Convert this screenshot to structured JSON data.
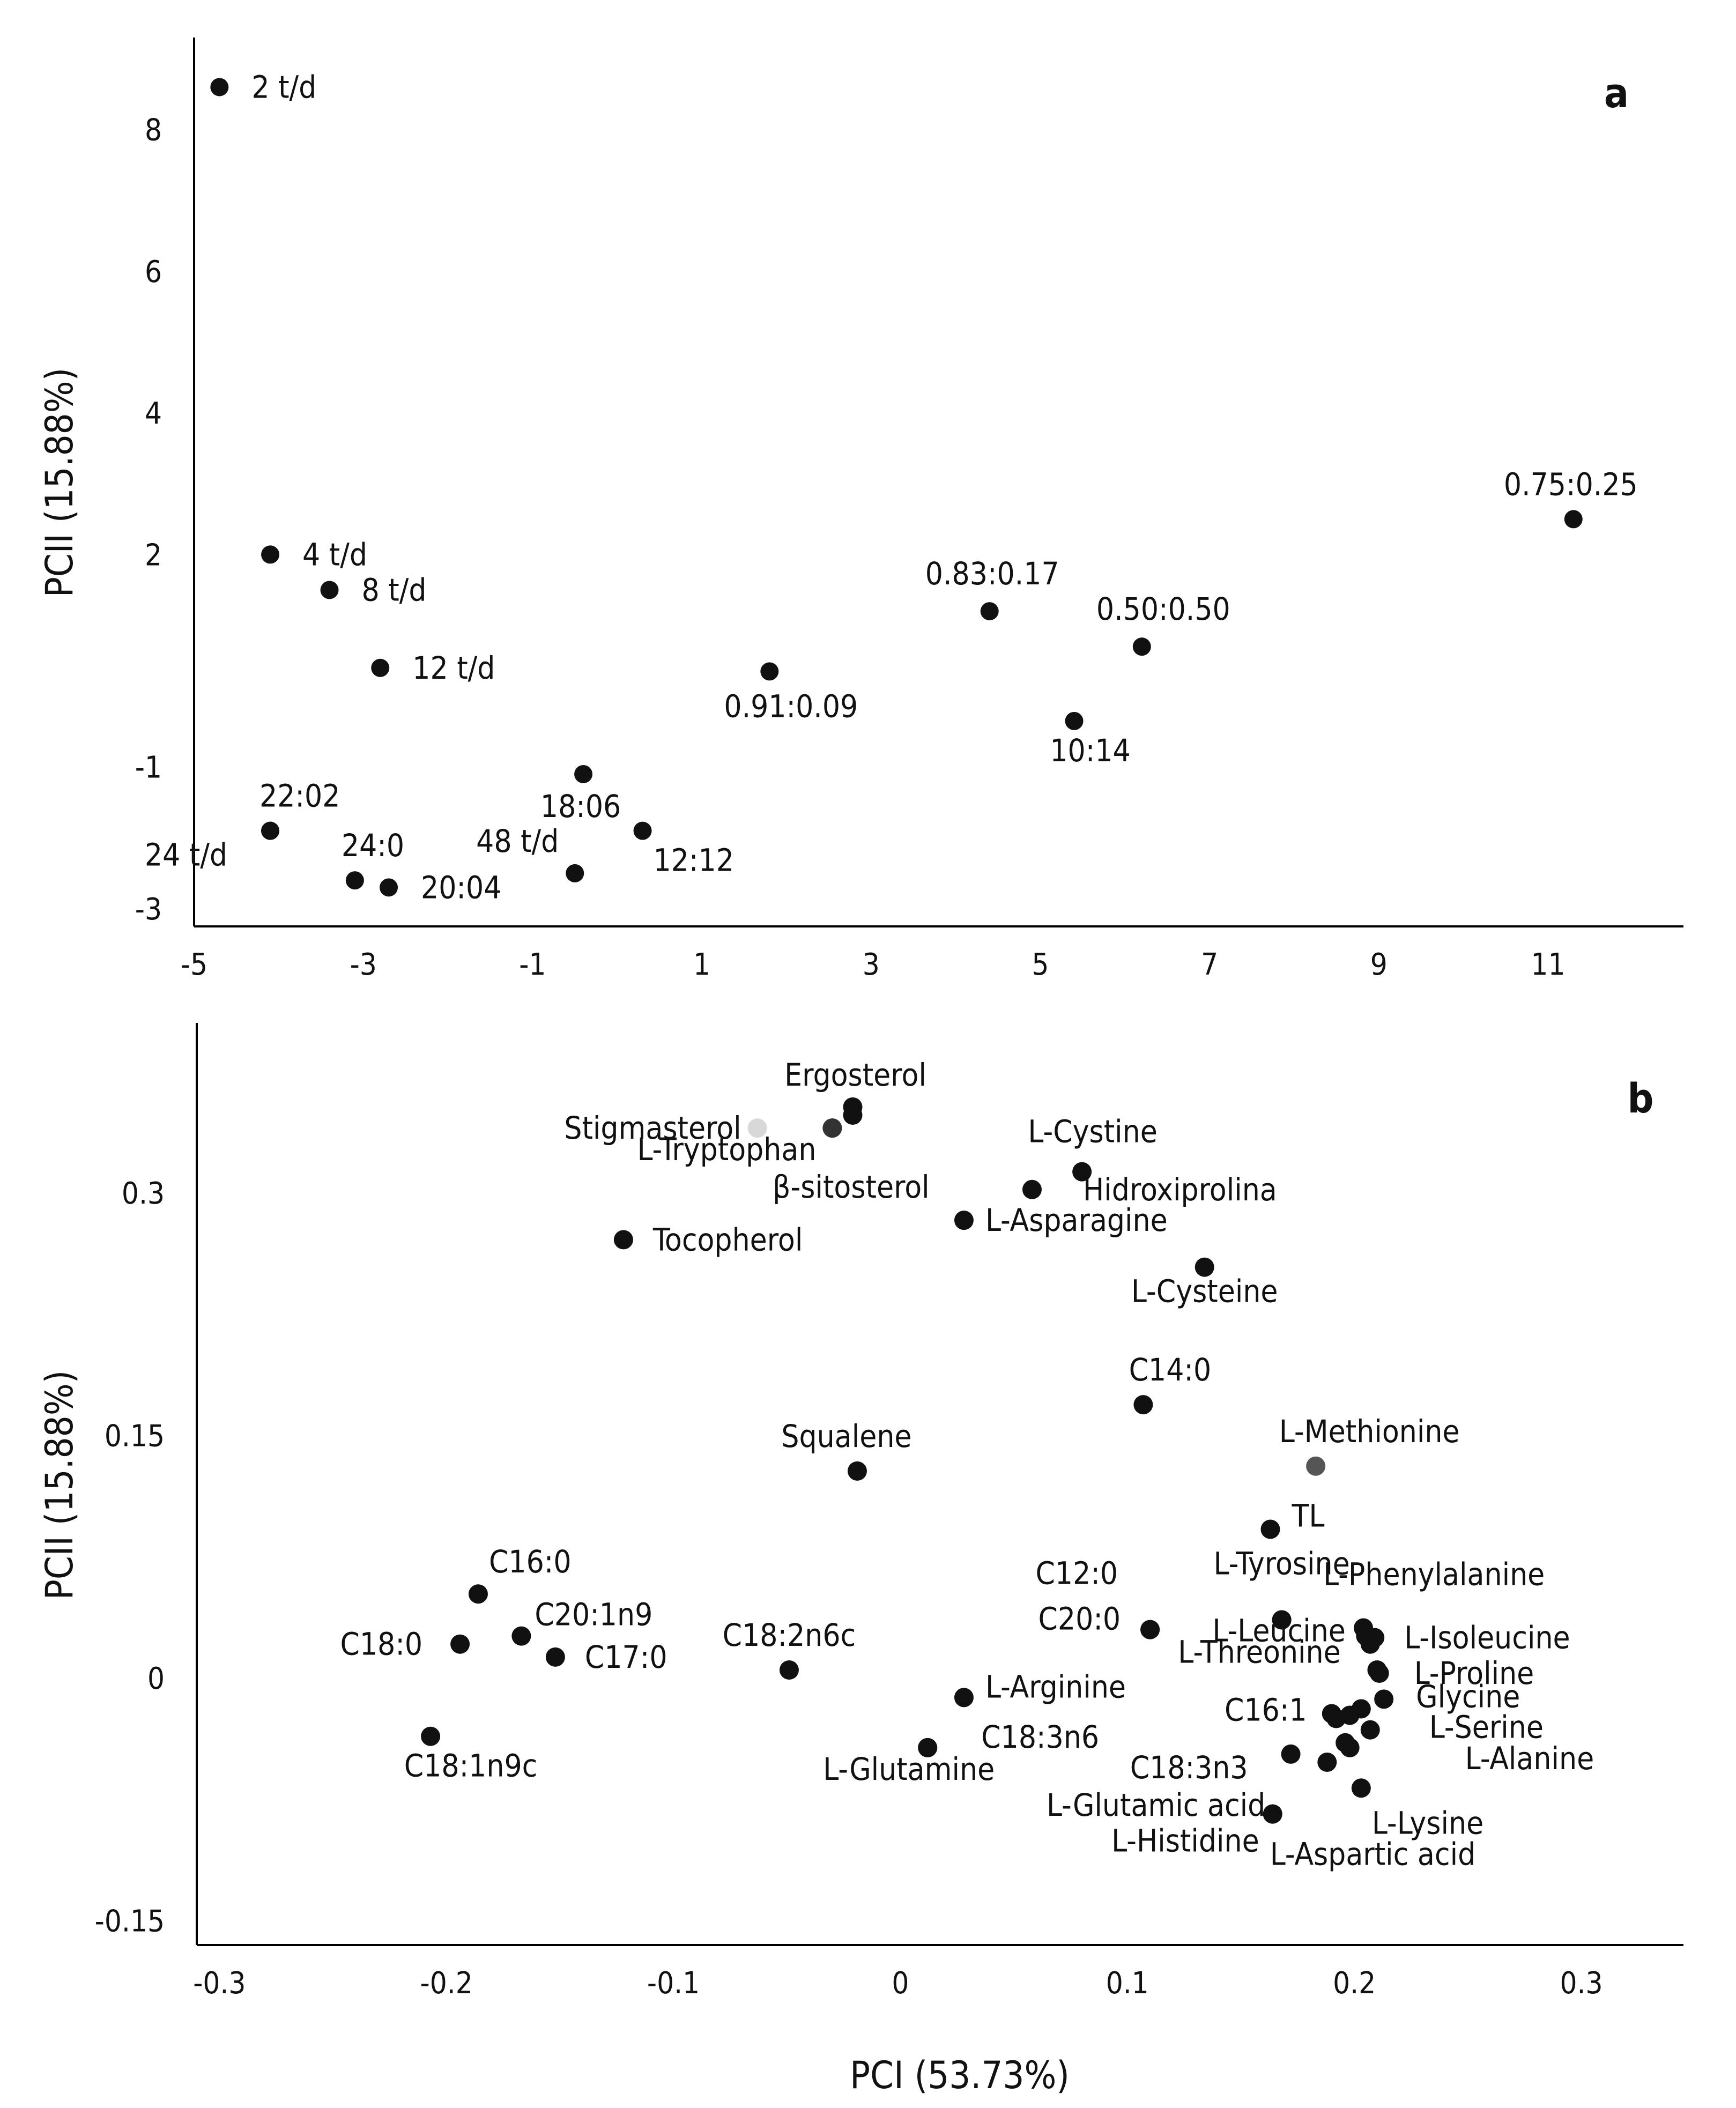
{
  "chart_data": [
    {
      "type": "scatter",
      "panel": "a",
      "ylabel": "PCII (15.88%)",
      "xlabel": "",
      "grid": false,
      "xlim": [
        -5,
        12.6
      ],
      "ylim": [
        -3.25,
        9.3
      ],
      "x_ticks": [
        -5,
        -3,
        -1,
        1,
        3,
        5,
        7,
        9,
        11
      ],
      "x_tick_labels": [
        "-5",
        "-3",
        "-1",
        "1",
        "3",
        "5",
        "7",
        "9",
        "11"
      ],
      "y_ticks": [
        -3,
        -1,
        2,
        4,
        6,
        8
      ],
      "y_tick_labels": [
        "-3",
        "-1",
        "2",
        "4",
        "6",
        "8"
      ],
      "points": [
        {
          "label": "2 t/d",
          "x": -4.7,
          "y": 8.6
        },
        {
          "label": "4 t/d",
          "x": -4.1,
          "y": 2.0
        },
        {
          "label": "8 t/d",
          "x": -3.4,
          "y": 1.5
        },
        {
          "label": "12 t/d",
          "x": -2.8,
          "y": 0.4
        },
        {
          "label": "22:02",
          "x": -4.1,
          "y": -1.9
        },
        {
          "label": "24:0",
          "x": -3.1,
          "y": -2.6
        },
        {
          "label": "24 t/d",
          "x": -4.1,
          "y": -1.9
        },
        {
          "label": "20:04",
          "x": -2.7,
          "y": -2.7
        },
        {
          "label": "18:06",
          "x": -0.4,
          "y": -1.1
        },
        {
          "label": "48 t/d",
          "x": -0.5,
          "y": -2.5
        },
        {
          "label": "12:12",
          "x": 0.3,
          "y": -1.9
        },
        {
          "label": "0.91:0.09",
          "x": 1.8,
          "y": 0.35
        },
        {
          "label": "0.83:0.17",
          "x": 4.4,
          "y": 1.2
        },
        {
          "label": "0.50:0.50",
          "x": 6.2,
          "y": 0.7
        },
        {
          "label": "10:14",
          "x": 5.4,
          "y": -0.35
        },
        {
          "label": "0.75:0.25",
          "x": 11.3,
          "y": 2.5
        }
      ]
    },
    {
      "type": "scatter",
      "panel": "b",
      "ylabel": "PCII (15.88%)",
      "xlabel": "PCI (53.73%)",
      "grid": false,
      "xlim": [
        -0.31,
        0.345
      ],
      "ylim": [
        -0.165,
        0.405
      ],
      "x_ticks": [
        -0.3,
        -0.2,
        -0.1,
        0,
        0.1,
        0.2,
        0.3
      ],
      "x_tick_labels": [
        "-0.3",
        "-0.2",
        "-0.1",
        "0",
        "0.1",
        "0.2",
        "0.3"
      ],
      "y_ticks": [
        -0.15,
        0,
        0.15,
        0.3
      ],
      "y_tick_labels": [
        "-0.15",
        "0",
        "0.15",
        "0.3"
      ],
      "points": [
        {
          "label": "Ergosterol",
          "x": -0.021,
          "y": 0.353,
          "color": "#111111"
        },
        {
          "label": "Stigmasterol",
          "x": -0.063,
          "y": 0.34,
          "color": "#d8d8d8"
        },
        {
          "label": "",
          "x": -0.021,
          "y": 0.348,
          "color": "#111111"
        },
        {
          "label": "L-Tryptophan",
          "x": -0.03,
          "y": 0.34,
          "color": "#333333"
        },
        {
          "label": "β-sitosterol",
          "x": -0.03,
          "y": 0.34,
          "color": "#333333"
        },
        {
          "label": "L-Cystine",
          "x": 0.08,
          "y": 0.313,
          "color": "#111111"
        },
        {
          "label": "Hidroxiprolina",
          "x": 0.058,
          "y": 0.302,
          "color": "#111111"
        },
        {
          "label": "L-Asparagine",
          "x": 0.028,
          "y": 0.283,
          "color": "#111111"
        },
        {
          "label": "Tocopherol",
          "x": -0.122,
          "y": 0.271,
          "color": "#111111"
        },
        {
          "label": "L-Cysteine",
          "x": 0.134,
          "y": 0.254,
          "color": "#111111"
        },
        {
          "label": "C14:0",
          "x": 0.107,
          "y": 0.169,
          "color": "#111111"
        },
        {
          "label": "L-Methionine",
          "x": 0.183,
          "y": 0.131,
          "color": "#555555"
        },
        {
          "label": "Squalene",
          "x": -0.019,
          "y": 0.128,
          "color": "#111111"
        },
        {
          "label": "TL",
          "x": 0.163,
          "y": 0.092,
          "color": "#111111"
        },
        {
          "label": "C16:0",
          "x": -0.186,
          "y": 0.052,
          "color": "#111111"
        },
        {
          "label": "C20:1n9",
          "x": -0.167,
          "y": 0.026,
          "color": "#111111"
        },
        {
          "label": "C18:0",
          "x": -0.194,
          "y": 0.021,
          "color": "#111111"
        },
        {
          "label": "C17:0",
          "x": -0.152,
          "y": 0.013,
          "color": "#111111"
        },
        {
          "label": "C18:2n6c",
          "x": -0.049,
          "y": 0.005,
          "color": "#111111"
        },
        {
          "label": "C18:1n9c",
          "x": -0.207,
          "y": -0.036,
          "color": "#111111"
        },
        {
          "label": "C12:0",
          "x": 0.11,
          "y": 0.03,
          "color": "#111111"
        },
        {
          "label": "C20:0",
          "x": 0.11,
          "y": 0.03,
          "color": "#111111"
        },
        {
          "label": "L-Tyrosine",
          "x": 0.168,
          "y": 0.036,
          "color": "#111111"
        },
        {
          "label": "L-Phenylalanine",
          "x": 0.204,
          "y": 0.031,
          "color": "#111111"
        },
        {
          "label": "L-Leucine",
          "x": 0.168,
          "y": 0.036,
          "color": "#111111"
        },
        {
          "label": "L-Isoleucine",
          "x": 0.209,
          "y": 0.025,
          "color": "#111111"
        },
        {
          "label": "L-Threonine",
          "x": 0.207,
          "y": 0.021,
          "color": "#111111"
        },
        {
          "label": "L-Proline",
          "x": 0.211,
          "y": 0.003,
          "color": "#111111"
        },
        {
          "label": "L-Arginine",
          "x": 0.028,
          "y": -0.012,
          "color": "#111111"
        },
        {
          "label": "C16:1",
          "x": 0.198,
          "y": -0.023,
          "color": "#111111"
        },
        {
          "label": "Glycine",
          "x": 0.213,
          "y": -0.013,
          "color": "#111111"
        },
        {
          "label": "C18:3n6",
          "x": 0.012,
          "y": -0.043,
          "color": "#111111"
        },
        {
          "label": "L-Serine",
          "x": 0.207,
          "y": -0.032,
          "color": "#111111"
        },
        {
          "label": "C18:3n3",
          "x": 0.172,
          "y": -0.047,
          "color": "#111111"
        },
        {
          "label": "L-Glutamine",
          "x": 0.012,
          "y": -0.043,
          "color": "#111111"
        },
        {
          "label": "L-Alanine",
          "x": 0.198,
          "y": -0.043,
          "color": "#111111"
        },
        {
          "label": "L-Glutamic acid",
          "x": 0.188,
          "y": -0.052,
          "color": "#111111"
        },
        {
          "label": "L-Lysine",
          "x": 0.203,
          "y": -0.068,
          "color": "#111111"
        },
        {
          "label": "L-Histidine",
          "x": 0.164,
          "y": -0.084,
          "color": "#111111"
        },
        {
          "label": "L-Aspartic acid",
          "x": 0.164,
          "y": -0.084,
          "color": "#111111"
        },
        {
          "label": "",
          "x": 0.19,
          "y": -0.022,
          "color": "#111111"
        },
        {
          "label": "",
          "x": 0.196,
          "y": -0.04,
          "color": "#111111"
        },
        {
          "label": "",
          "x": 0.203,
          "y": -0.019,
          "color": "#111111"
        },
        {
          "label": "",
          "x": 0.21,
          "y": 0.005,
          "color": "#111111"
        },
        {
          "label": "",
          "x": 0.205,
          "y": 0.026,
          "color": "#111111"
        },
        {
          "label": "",
          "x": 0.192,
          "y": -0.025,
          "color": "#111111"
        }
      ]
    }
  ]
}
